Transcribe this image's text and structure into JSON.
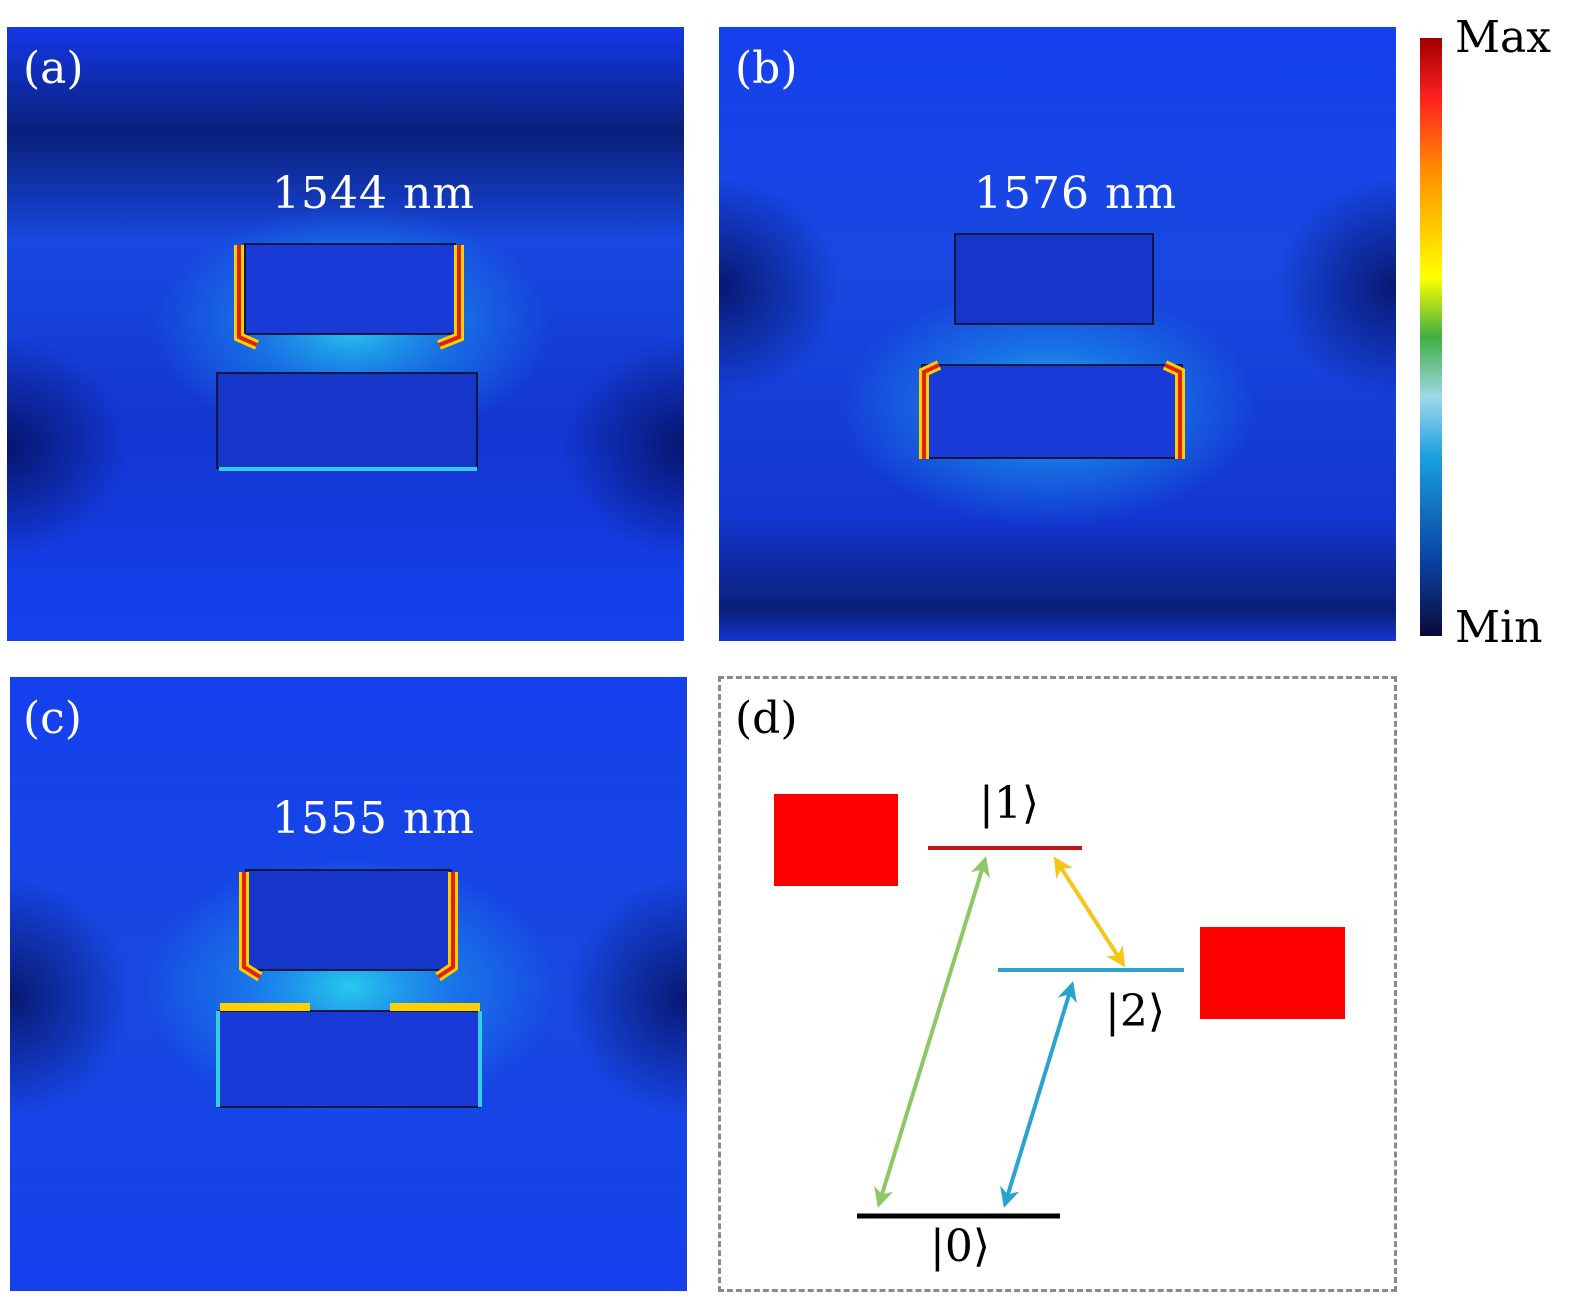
{
  "panels": [
    {
      "id": "a",
      "label": "(a)",
      "wavelength": "1544 nm"
    },
    {
      "id": "b",
      "label": "(b)",
      "wavelength": "1576 nm"
    },
    {
      "id": "c",
      "label": "(c)",
      "wavelength": "1555 nm"
    }
  ],
  "diagram": {
    "label": "(d)",
    "states": [
      "|1⟩",
      "|2⟩",
      "|0⟩"
    ],
    "colors": {
      "level1": "#c0161c",
      "level2": "#2aa3cf",
      "level0": "#000000",
      "arrow_0_1": "#8fc764",
      "arrow_1_2": "#f5c518",
      "arrow_0_2": "#2aa3cf",
      "box": "#ff0000"
    }
  },
  "colorbar": {
    "max_label": "Max",
    "min_label": "Min",
    "colormap": [
      "#0a0a3a",
      "#0a3fa0",
      "#1aa0e0",
      "#9fd8e8",
      "#40b040",
      "#ffff00",
      "#ff8c00",
      "#ff2020",
      "#a00000"
    ]
  }
}
